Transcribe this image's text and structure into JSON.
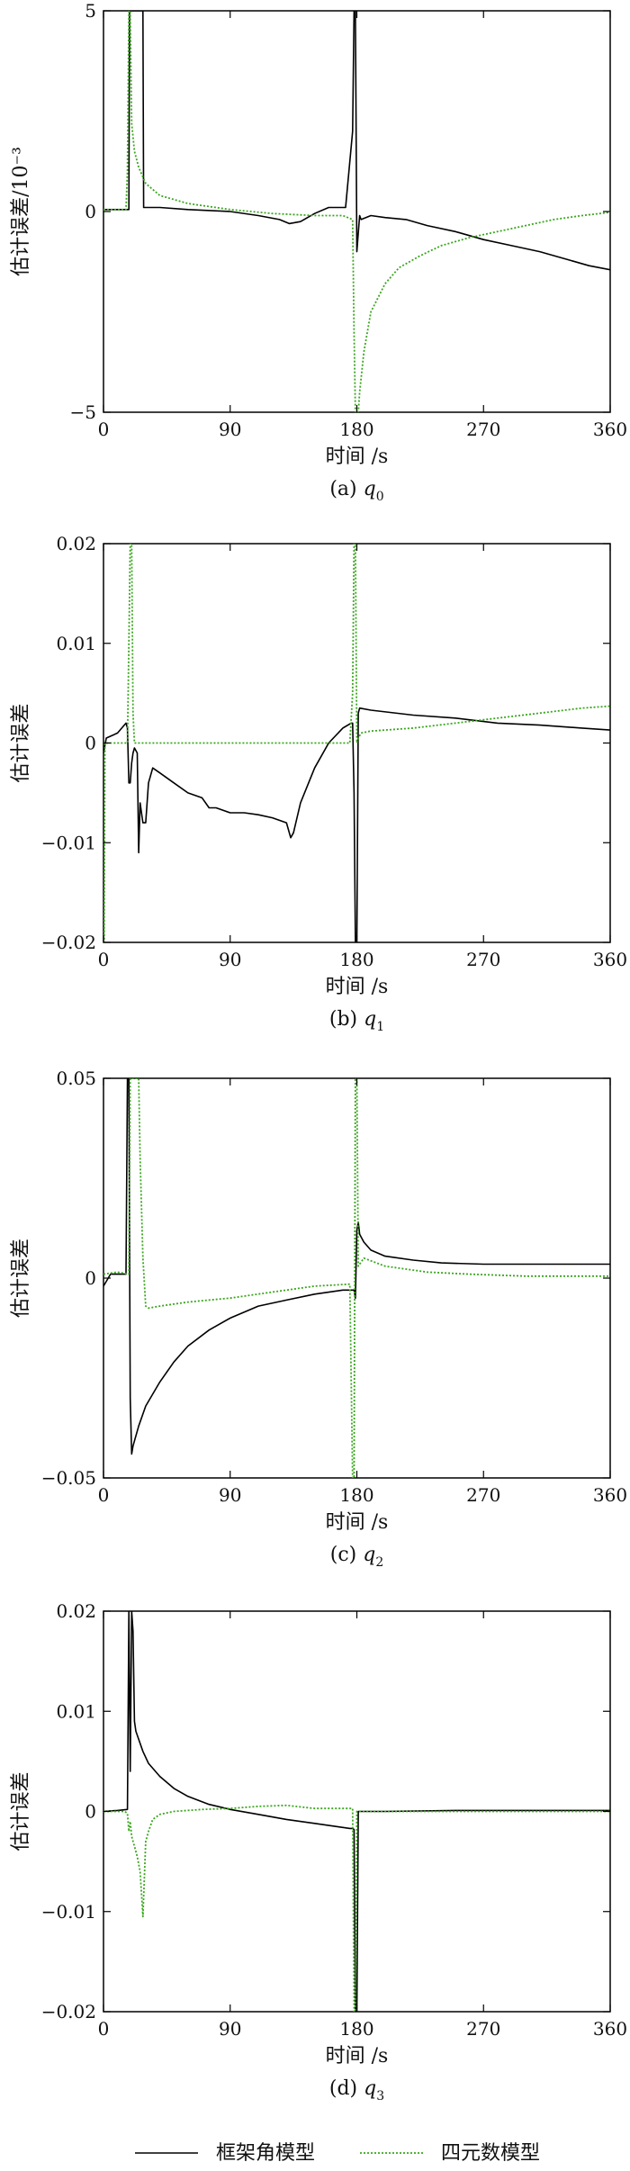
{
  "legend": {
    "entries": [
      {
        "label": "框架角模型",
        "color": "#000000",
        "style": "solid"
      },
      {
        "label": "四元数模型",
        "color": "#3aa61d",
        "style": "dotted"
      }
    ]
  },
  "chart_data": [
    {
      "type": "line",
      "caption": "(a) q",
      "caption_sub": "0",
      "ylabel": "估计误差/10⁻³",
      "xlabel": "时间 /s",
      "xlim": [
        0,
        360
      ],
      "ylim": [
        -5,
        5
      ],
      "xticks": [
        0,
        90,
        180,
        270,
        360
      ],
      "yticks": [
        5,
        0,
        -5
      ],
      "ytick_labels": [
        "5",
        "0",
        "−5"
      ],
      "xtick_labels": [
        "0",
        "90",
        "180",
        "270",
        "360"
      ],
      "grid": false,
      "series": [
        {
          "name": "框架角模型",
          "color": "#000000",
          "dash": "solid",
          "x": [
            0,
            18,
            18.5,
            28,
            28.5,
            40,
            60,
            90,
            110,
            125,
            132,
            140,
            150,
            160,
            172,
            177,
            178,
            179,
            180,
            182,
            183,
            190,
            200,
            215,
            230,
            250,
            270,
            290,
            310,
            330,
            345,
            360
          ],
          "y": [
            0.05,
            0.05,
            5,
            5,
            0.1,
            0.1,
            0.05,
            0,
            -0.1,
            -0.2,
            -0.3,
            -0.25,
            -0.05,
            0.1,
            0.1,
            2,
            5,
            5,
            -1,
            -0.1,
            -0.2,
            -0.1,
            -0.15,
            -0.2,
            -0.35,
            -0.5,
            -0.7,
            -0.85,
            -1.0,
            -1.2,
            -1.35,
            -1.45
          ]
        },
        {
          "name": "四元数模型",
          "color": "#3aa61d",
          "dash": "dotted",
          "x": [
            0,
            16,
            17,
            18,
            19,
            20,
            22,
            25,
            30,
            40,
            60,
            90,
            120,
            150,
            170,
            177,
            178,
            179,
            180,
            181,
            182,
            185,
            190,
            200,
            210,
            225,
            240,
            260,
            280,
            300,
            320,
            340,
            360
          ],
          "y": [
            0.05,
            0.05,
            1,
            5,
            5,
            2.2,
            1.5,
            1.1,
            0.7,
            0.4,
            0.2,
            0.05,
            -0.05,
            -0.1,
            -0.1,
            -0.2,
            -3,
            -5,
            -5,
            -5,
            -4.5,
            -3.5,
            -2.5,
            -1.8,
            -1.4,
            -1.1,
            -0.85,
            -0.65,
            -0.5,
            -0.35,
            -0.2,
            -0.1,
            -0.02
          ]
        }
      ]
    },
    {
      "type": "line",
      "caption": "(b) q",
      "caption_sub": "1",
      "ylabel": "估计误差",
      "xlabel": "时间 /s",
      "xlim": [
        0,
        360
      ],
      "ylim": [
        -0.02,
        0.02
      ],
      "xticks": [
        0,
        90,
        180,
        270,
        360
      ],
      "yticks": [
        0.02,
        0.01,
        0,
        -0.01,
        -0.02
      ],
      "ytick_labels": [
        "0.02",
        "0.01",
        "0",
        "−0.01",
        "−0.02"
      ],
      "xtick_labels": [
        "0",
        "90",
        "180",
        "270",
        "360"
      ],
      "grid": false,
      "series": [
        {
          "name": "框架角模型",
          "color": "#000000",
          "dash": "solid",
          "x": [
            0,
            2,
            10,
            16,
            17,
            18,
            19,
            20,
            21,
            22,
            24,
            25,
            26,
            27,
            28,
            30,
            32,
            35,
            40,
            50,
            60,
            70,
            75,
            80,
            90,
            100,
            110,
            120,
            130,
            133,
            135,
            140,
            150,
            160,
            170,
            176,
            177,
            178,
            179,
            180,
            181,
            182,
            190,
            220,
            250,
            280,
            310,
            340,
            360
          ],
          "y": [
            -0.001,
            0.0005,
            0.001,
            0.002,
            0.0015,
            -0.004,
            -0.004,
            -0.002,
            -0.001,
            -0.0005,
            -0.001,
            -0.011,
            -0.006,
            -0.007,
            -0.008,
            -0.008,
            -0.004,
            -0.0025,
            -0.003,
            -0.004,
            -0.005,
            -0.0055,
            -0.0065,
            -0.0065,
            -0.007,
            -0.007,
            -0.0072,
            -0.0075,
            -0.008,
            -0.0095,
            -0.009,
            -0.006,
            -0.0025,
            0,
            0.0015,
            0.002,
            0.002,
            -0.005,
            -0.02,
            -0.02,
            0.003,
            0.0035,
            0.0033,
            0.0028,
            0.0025,
            0.002,
            0.0018,
            0.0015,
            0.0013
          ]
        },
        {
          "name": "四元数模型",
          "color": "#3aa61d",
          "dash": "dotted",
          "x": [
            0,
            0.5,
            1,
            3,
            10,
            17,
            18,
            19,
            20,
            21,
            22,
            25,
            30,
            60,
            90,
            120,
            150,
            175,
            177,
            178,
            179,
            180,
            181,
            183,
            190,
            220,
            250,
            280,
            310,
            340,
            360
          ],
          "y": [
            -0.02,
            -0.02,
            0,
            0,
            0,
            0,
            0.01,
            0.02,
            0.02,
            0.003,
            0,
            0,
            0,
            0,
            0,
            0,
            0,
            0,
            0.005,
            0.02,
            0.02,
            0,
            0.0005,
            0.001,
            0.0012,
            0.0015,
            0.002,
            0.0025,
            0.003,
            0.0035,
            0.0037
          ]
        }
      ]
    },
    {
      "type": "line",
      "caption": "(c) q",
      "caption_sub": "2",
      "ylabel": "估计误差",
      "xlabel": "时间 /s",
      "xlim": [
        0,
        360
      ],
      "ylim": [
        -0.05,
        0.05
      ],
      "xticks": [
        0,
        90,
        180,
        270,
        360
      ],
      "yticks": [
        0.05,
        0,
        -0.05
      ],
      "ytick_labels": [
        "0.05",
        "0",
        "−0.05"
      ],
      "xtick_labels": [
        "0",
        "90",
        "180",
        "270",
        "360"
      ],
      "grid": false,
      "series": [
        {
          "name": "框架角模型",
          "color": "#000000",
          "dash": "solid",
          "x": [
            0,
            5,
            16,
            17,
            18,
            19,
            20,
            21,
            25,
            30,
            40,
            50,
            60,
            75,
            90,
            110,
            130,
            150,
            170,
            176,
            177,
            178,
            179,
            180,
            181,
            182,
            185,
            190,
            200,
            220,
            240,
            270,
            300,
            330,
            360
          ],
          "y": [
            -0.002,
            0.001,
            0.001,
            0.05,
            0.05,
            -0.03,
            -0.044,
            -0.042,
            -0.037,
            -0.032,
            -0.026,
            -0.021,
            -0.017,
            -0.013,
            -0.01,
            -0.007,
            -0.0055,
            -0.004,
            -0.003,
            -0.003,
            -0.003,
            -0.003,
            -0.005,
            0.012,
            0.014,
            0.011,
            0.009,
            0.007,
            0.0055,
            0.0045,
            0.0038,
            0.0035,
            0.0035,
            0.0035,
            0.0035
          ]
        },
        {
          "name": "四元数模型",
          "color": "#3aa61d",
          "dash": "dotted",
          "x": [
            0,
            10,
            18,
            19,
            20,
            21,
            22,
            25,
            26,
            28,
            30,
            32,
            40,
            60,
            90,
            120,
            150,
            175,
            177,
            178,
            179,
            180,
            181,
            185,
            200,
            230,
            260,
            300,
            360
          ],
          "y": [
            0.001,
            0.0015,
            0.001,
            0.05,
            0.05,
            0.05,
            0.05,
            0.05,
            0.03,
            0.005,
            -0.007,
            -0.0075,
            -0.007,
            -0.006,
            -0.005,
            -0.0035,
            -0.002,
            -0.0015,
            -0.05,
            -0.05,
            0.05,
            0.05,
            0.003,
            0.005,
            0.003,
            0.0015,
            0.001,
            0.0005,
            0.0005
          ]
        }
      ]
    },
    {
      "type": "line",
      "caption": "(d) q",
      "caption_sub": "3",
      "ylabel": "估计误差",
      "xlabel": "时间 /s",
      "xlim": [
        0,
        360
      ],
      "ylim": [
        -0.02,
        0.02
      ],
      "xticks": [
        0,
        90,
        180,
        270,
        360
      ],
      "yticks": [
        0.02,
        0.01,
        0,
        -0.01,
        -0.02
      ],
      "ytick_labels": [
        "0.02",
        "0.01",
        "0",
        "−0.01",
        "−0.02"
      ],
      "xtick_labels": [
        "0",
        "90",
        "180",
        "270",
        "360"
      ],
      "grid": false,
      "series": [
        {
          "name": "框架角模型",
          "color": "#000000",
          "dash": "solid",
          "x": [
            0,
            10,
            17,
            18,
            19,
            20,
            21,
            22,
            23,
            25,
            28,
            32,
            40,
            50,
            60,
            75,
            90,
            110,
            130,
            150,
            170,
            175,
            177,
            178,
            179,
            180,
            181,
            182,
            200,
            250,
            300,
            360
          ],
          "y": [
            0,
            0.0001,
            0.0002,
            0.02,
            0.004,
            0.02,
            0.018,
            0.009,
            0.008,
            0.0072,
            0.006,
            0.0048,
            0.0035,
            0.0023,
            0.0015,
            0.0007,
            0.0002,
            -0.0003,
            -0.0008,
            -0.0012,
            -0.0016,
            -0.0017,
            -0.0017,
            -0.0018,
            -0.02,
            -0.02,
            0,
            0,
            0,
            0.0001,
            0.0001,
            0.0001
          ]
        },
        {
          "name": "四元数模型",
          "color": "#3aa61d",
          "dash": "dotted",
          "x": [
            0,
            15,
            17,
            18,
            19,
            20,
            22,
            24,
            26,
            28,
            30,
            32,
            35,
            40,
            50,
            70,
            90,
            110,
            130,
            150,
            170,
            176,
            177,
            178,
            179,
            180,
            181,
            182,
            200,
            250,
            300,
            360
          ],
          "y": [
            0,
            0,
            -0.0002,
            -0.002,
            -0.001,
            -0.0025,
            -0.0035,
            -0.0045,
            -0.006,
            -0.0105,
            -0.003,
            -0.002,
            -0.0008,
            -0.0003,
            0,
            0.0002,
            0.0003,
            0.0005,
            0.0006,
            0.0003,
            0.0003,
            0.0003,
            0.0003,
            -0.02,
            -0.02,
            0,
            0,
            0,
            0,
            0,
            0,
            0
          ]
        }
      ]
    }
  ]
}
